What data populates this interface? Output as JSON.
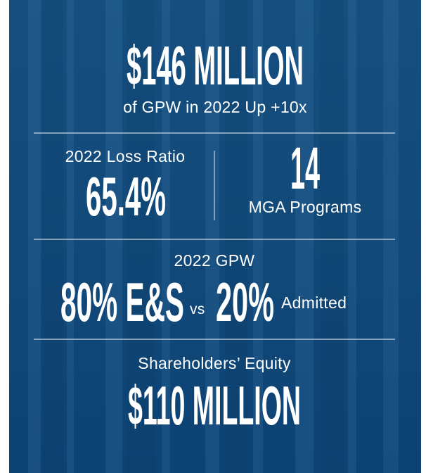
{
  "headline": {
    "value": "$146 MILLION",
    "subtitle": "of GPW in 2022 Up +10x"
  },
  "loss_ratio": {
    "label": "2022 Loss Ratio",
    "value": "65.4%"
  },
  "programs": {
    "value": "14",
    "label": "MGA Programs"
  },
  "gpw_split": {
    "label": "2022 GPW",
    "es_value": "80% E&S",
    "connector": "vs",
    "admitted_value": "20%",
    "admitted_label": "Admitted"
  },
  "equity": {
    "label": "Shareholders’ Equity",
    "value": "$110 MILLION"
  }
}
